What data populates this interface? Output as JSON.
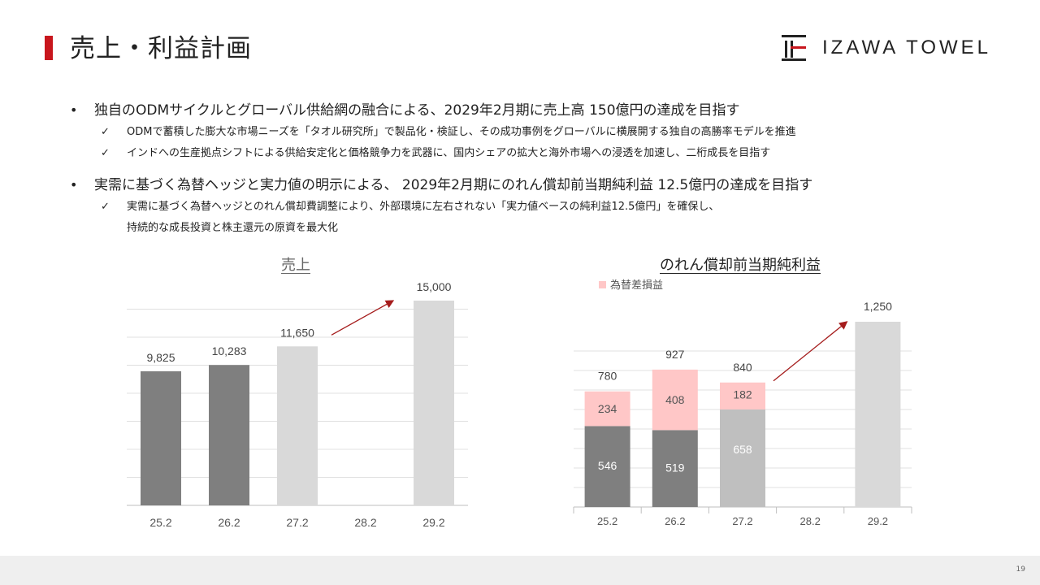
{
  "header": {
    "title": "売上・利益計画",
    "logo_text": "IZAWA TOWEL"
  },
  "bullets": [
    {
      "text": "独自のODMサイクルとグローバル供給網の融合による、2029年2月期に売上高 150億円の達成を目指す",
      "subs": [
        "ODMで蓄積した膨大な市場ニーズを「タオル研究所」で製品化・検証し、その成功事例をグローバルに横展開する独自の高勝率モデルを推進",
        "インドへの生産拠点シフトによる供給安定化と価格競争力を武器に、国内シェアの拡大と海外市場への浸透を加速し、二桁成長を目指す"
      ]
    },
    {
      "text": "実需に基づく為替ヘッジと実力値の明示による、 2029年2月期にのれん償却前当期純利益 12.5億円の達成を目指す",
      "subs": [
        "実需に基づく為替ヘッジとのれん償却費調整により、外部環境に左右されない「実力値ベースの純利益12.5億円」を確保し、",
        "持続的な成長投資と株主還元の原資を最大化"
      ]
    }
  ],
  "footer": {
    "page_number": "19"
  },
  "colors": {
    "accent": "#c8161d",
    "dark_bar": "#7f7f7f",
    "light_bar": "#d9d9d9",
    "mid_bar": "#bfbfbf",
    "pink_bar": "#ffc7c7",
    "arrow": "#a51c1c"
  },
  "chart_data": [
    {
      "type": "bar",
      "title": "売上",
      "categories": [
        "25.2",
        "26.2",
        "27.2",
        "28.2",
        "29.2"
      ],
      "values": [
        9825,
        10283,
        11650,
        null,
        15000
      ],
      "value_labels": [
        "9,825",
        "10,283",
        "11,650",
        "",
        "15,000"
      ],
      "bar_colors": [
        "#7f7f7f",
        "#7f7f7f",
        "#d9d9d9",
        null,
        "#d9d9d9"
      ],
      "ylim": [
        0,
        15700
      ],
      "grid": true,
      "annotation": "arrow from 27.2 to 29.2"
    },
    {
      "type": "bar",
      "stacked": true,
      "title": "のれん償却前当期純利益",
      "categories": [
        "25.2",
        "26.2",
        "27.2",
        "28.2",
        "29.2"
      ],
      "series": [
        {
          "values": [
            546,
            519,
            658,
            null,
            1250
          ],
          "labels": [
            "546",
            "519",
            "658",
            "",
            ""
          ]
        },
        {
          "name": "為替差損益",
          "values": [
            234,
            408,
            182,
            null,
            null
          ],
          "labels": [
            "234",
            "408",
            "182",
            "",
            ""
          ]
        }
      ],
      "totals": [
        "780",
        "927",
        "840",
        "",
        "1,250"
      ],
      "ylim": [
        0,
        1250
      ],
      "grid": true,
      "legend": "top-left",
      "annotation": "arrow from 27.2 to 29.2"
    }
  ]
}
